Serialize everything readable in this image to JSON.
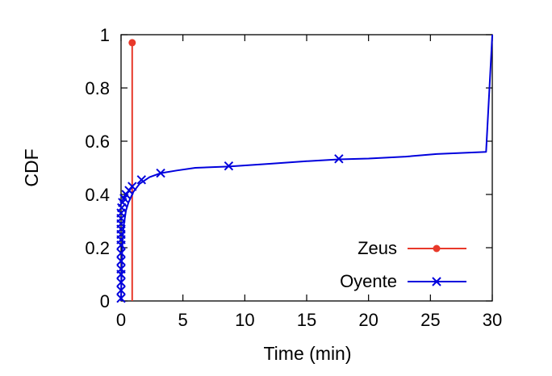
{
  "chart_data": {
    "type": "line",
    "title": "",
    "xlabel": "Time (min)",
    "ylabel": "CDF",
    "xlim": [
      0,
      30
    ],
    "ylim": [
      0,
      1
    ],
    "xticks": [
      0,
      5,
      10,
      15,
      20,
      25,
      30
    ],
    "xtick_labels": [
      "0",
      "5",
      "10",
      "15",
      "20",
      "25",
      "30"
    ],
    "yticks": [
      0,
      0.2,
      0.4,
      0.6,
      0.8,
      1
    ],
    "ytick_labels": [
      "0",
      "0.2",
      "0.4",
      "0.6",
      "0.8",
      "1"
    ],
    "grid": false,
    "legend_position": "bottom-right",
    "series": [
      {
        "name": "Zeus",
        "color": "#e8392a",
        "marker": "filled-circle",
        "style": "impulse",
        "x": [
          0.9
        ],
        "y": [
          0.97
        ]
      },
      {
        "name": "Oyente",
        "color": "#0000dd",
        "marker": "cross",
        "style": "line",
        "x": [
          0,
          0.01,
          0.02,
          0.03,
          0.05,
          0.07,
          0.1,
          0.15,
          0.2,
          0.3,
          0.4,
          0.6,
          1.0,
          1.5,
          2.3,
          3.2,
          4.5,
          6.0,
          8.7,
          12.0,
          15.0,
          17.6,
          20.0,
          23.0,
          25.5,
          29.5,
          30.0
        ],
        "y": [
          0,
          0.02,
          0.05,
          0.08,
          0.12,
          0.16,
          0.2,
          0.24,
          0.28,
          0.31,
          0.34,
          0.37,
          0.41,
          0.44,
          0.465,
          0.48,
          0.49,
          0.5,
          0.505,
          0.515,
          0.525,
          0.532,
          0.535,
          0.542,
          0.552,
          0.56,
          1.0
        ],
        "marker_x": [
          0,
          0,
          0,
          0,
          0,
          0,
          0,
          0,
          0,
          0,
          0,
          0,
          0,
          0,
          0.05,
          0.12,
          0.25,
          0.4,
          0.65,
          0.9,
          1.65,
          3.2,
          8.7,
          17.6
        ],
        "marker_y": [
          0.01,
          0.04,
          0.07,
          0.1,
          0.12,
          0.15,
          0.18,
          0.21,
          0.23,
          0.25,
          0.27,
          0.29,
          0.31,
          0.33,
          0.35,
          0.37,
          0.385,
          0.4,
          0.415,
          0.43,
          0.455,
          0.48,
          0.507,
          0.534
        ]
      }
    ]
  }
}
